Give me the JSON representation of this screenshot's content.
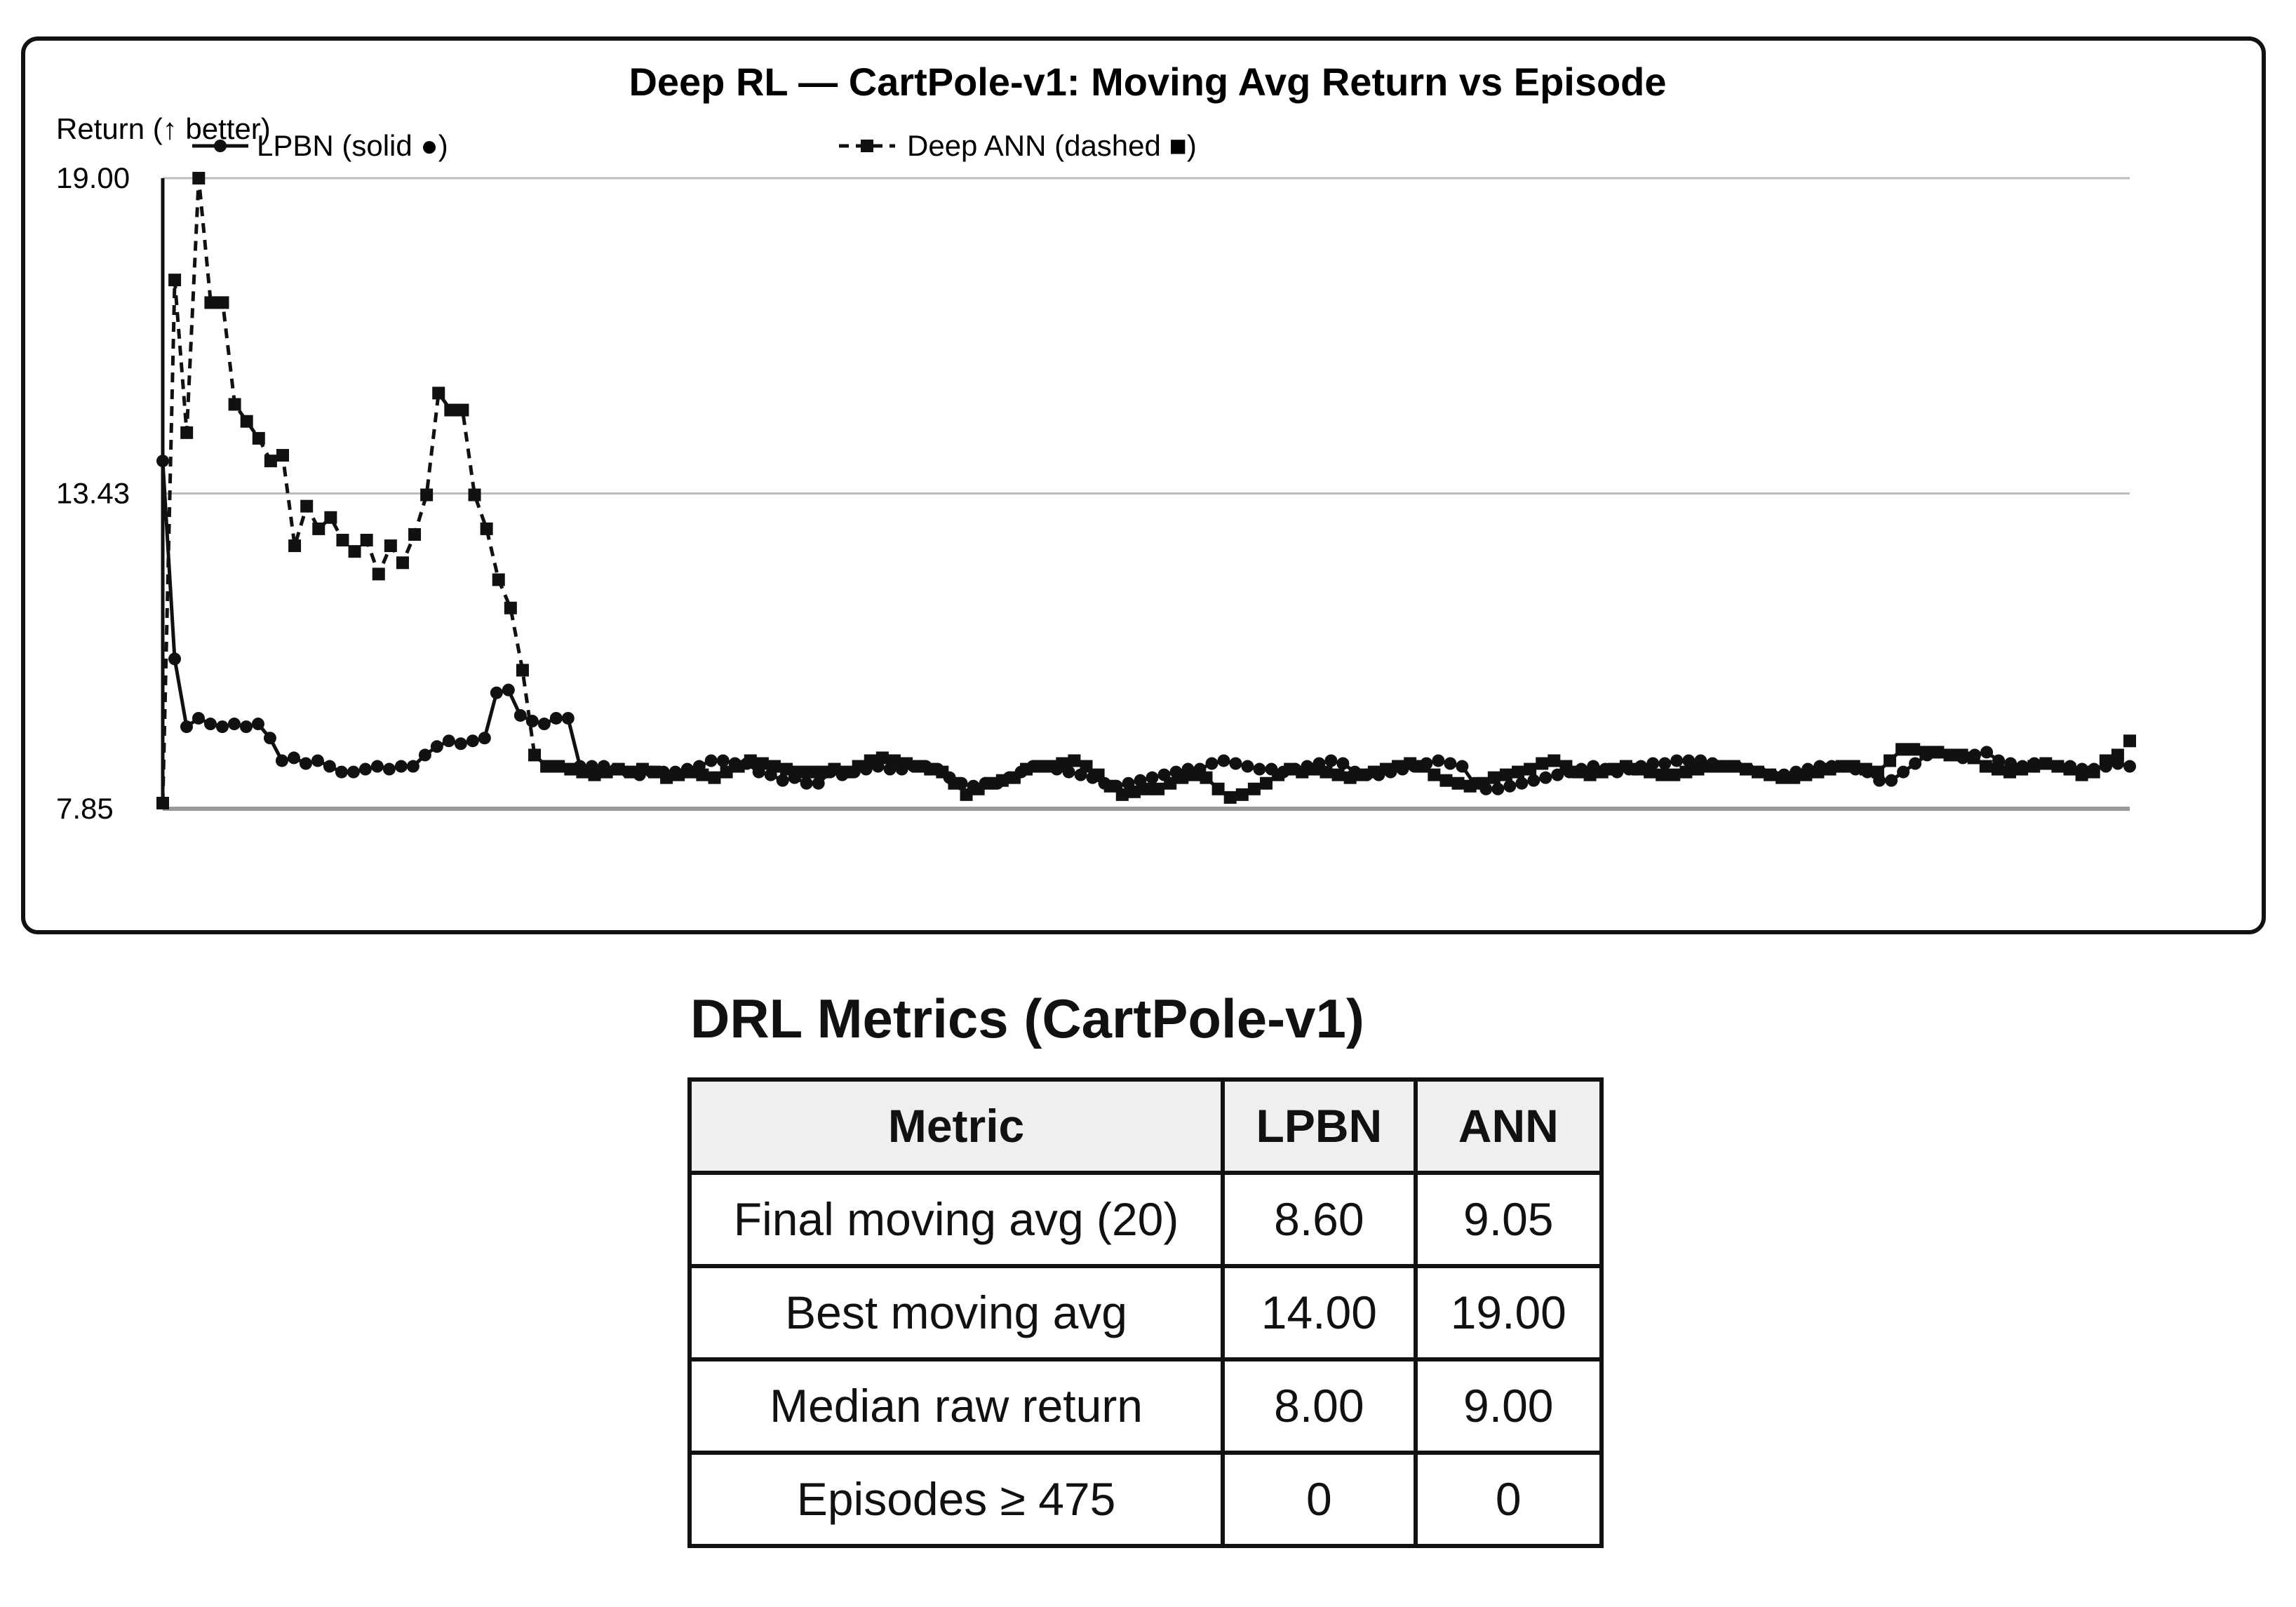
{
  "chart_data": {
    "type": "line",
    "title": "Deep RL — CartPole-v1: Moving Avg Return vs Episode",
    "ylabel": "Return (↑ better)",
    "xlabel": "",
    "ylim": [
      7.85,
      19.0
    ],
    "yticks": [
      "19.00",
      "13.43",
      "7.85"
    ],
    "grid": true,
    "legend_position": "top-left",
    "episodes": 200,
    "series": [
      {
        "name": "LPBN (solid ●)",
        "style": "solid",
        "marker": "circle",
        "values": [
          14.0,
          10.5,
          9.3,
          9.45,
          9.35,
          9.3,
          9.35,
          9.3,
          9.35,
          9.1,
          8.7,
          8.75,
          8.65,
          8.7,
          8.6,
          8.5,
          8.5,
          8.55,
          8.6,
          8.55,
          8.6,
          8.6,
          8.8,
          8.95,
          9.05,
          9.0,
          9.05,
          9.1,
          9.9,
          9.95,
          9.5,
          9.4,
          9.35,
          9.45,
          9.45,
          8.6,
          8.6,
          8.6,
          8.55,
          8.5,
          8.45,
          8.5,
          8.5,
          8.5,
          8.55,
          8.6,
          8.7,
          8.7,
          8.65,
          8.65,
          8.5,
          8.45,
          8.35,
          8.4,
          8.3,
          8.3,
          8.5,
          8.45,
          8.5,
          8.55,
          8.6,
          8.55,
          8.55,
          8.6,
          8.6,
          8.55,
          8.4,
          8.3,
          8.25,
          8.3,
          8.3,
          8.4,
          8.5,
          8.6,
          8.6,
          8.55,
          8.5,
          8.45,
          8.4,
          8.3,
          8.25,
          8.3,
          8.35,
          8.4,
          8.45,
          8.5,
          8.55,
          8.55,
          8.65,
          8.7,
          8.65,
          8.6,
          8.55,
          8.55,
          8.5,
          8.55,
          8.6,
          8.65,
          8.7,
          8.65,
          8.5,
          8.45,
          8.45,
          8.5,
          8.55,
          8.6,
          8.65,
          8.7,
          8.65,
          8.6,
          8.3,
          8.2,
          8.2,
          8.25,
          8.3,
          8.35,
          8.4,
          8.45,
          8.5,
          8.55,
          8.6,
          8.55,
          8.5,
          8.55,
          8.6,
          8.65,
          8.65,
          8.7,
          8.7,
          8.7,
          8.65,
          8.6,
          8.6,
          8.55,
          8.5,
          8.45,
          8.45,
          8.5,
          8.55,
          8.6,
          8.6,
          8.6,
          8.55,
          8.5,
          8.35,
          8.35,
          8.5,
          8.65,
          8.8,
          8.85,
          8.8,
          8.75,
          8.8,
          8.85,
          8.7,
          8.65,
          8.6,
          8.65,
          8.65,
          8.6,
          8.6,
          8.55,
          8.55,
          8.6,
          8.65,
          8.6
        ]
      },
      {
        "name": "Deep ANN (dashed ■)",
        "style": "dashed",
        "marker": "square",
        "values": [
          7.95,
          17.2,
          14.5,
          19.0,
          16.8,
          16.8,
          15.0,
          14.7,
          14.4,
          14.0,
          14.1,
          12.5,
          13.2,
          12.8,
          13.0,
          12.6,
          12.4,
          12.6,
          12.0,
          12.5,
          12.2,
          12.7,
          13.4,
          15.2,
          14.9,
          14.9,
          13.4,
          12.8,
          11.9,
          11.4,
          10.3,
          8.8,
          8.6,
          8.6,
          8.55,
          8.5,
          8.45,
          8.5,
          8.55,
          8.5,
          8.55,
          8.5,
          8.4,
          8.45,
          8.5,
          8.45,
          8.4,
          8.5,
          8.6,
          8.7,
          8.65,
          8.6,
          8.55,
          8.5,
          8.5,
          8.5,
          8.55,
          8.5,
          8.6,
          8.7,
          8.75,
          8.7,
          8.65,
          8.6,
          8.55,
          8.5,
          8.3,
          8.1,
          8.2,
          8.3,
          8.35,
          8.4,
          8.55,
          8.6,
          8.6,
          8.65,
          8.7,
          8.6,
          8.45,
          8.25,
          8.1,
          8.15,
          8.2,
          8.2,
          8.3,
          8.4,
          8.45,
          8.4,
          8.2,
          8.05,
          8.1,
          8.2,
          8.3,
          8.45,
          8.55,
          8.5,
          8.55,
          8.5,
          8.45,
          8.4,
          8.45,
          8.5,
          8.55,
          8.6,
          8.65,
          8.6,
          8.45,
          8.35,
          8.3,
          8.25,
          8.3,
          8.4,
          8.45,
          8.5,
          8.55,
          8.65,
          8.7,
          8.6,
          8.5,
          8.45,
          8.5,
          8.55,
          8.6,
          8.55,
          8.5,
          8.45,
          8.45,
          8.5,
          8.55,
          8.6,
          8.6,
          8.6,
          8.55,
          8.5,
          8.45,
          8.4,
          8.4,
          8.45,
          8.5,
          8.55,
          8.6,
          8.6,
          8.55,
          8.5,
          8.7,
          8.9,
          8.9,
          8.85,
          8.85,
          8.8,
          8.8,
          8.75,
          8.6,
          8.55,
          8.5,
          8.55,
          8.6,
          8.65,
          8.6,
          8.55,
          8.45,
          8.5,
          8.7,
          8.8,
          9.05
        ]
      }
    ]
  },
  "metrics": {
    "title": "DRL Metrics (CartPole-v1)",
    "headers": [
      "Metric",
      "LPBN",
      "ANN"
    ],
    "rows": [
      [
        "Final moving avg (20)",
        "8.60",
        "9.05"
      ],
      [
        "Best moving avg",
        "14.00",
        "19.00"
      ],
      [
        "Median raw return",
        "8.00",
        "9.00"
      ],
      [
        "Episodes ≥ 475",
        "0",
        "0"
      ]
    ]
  }
}
